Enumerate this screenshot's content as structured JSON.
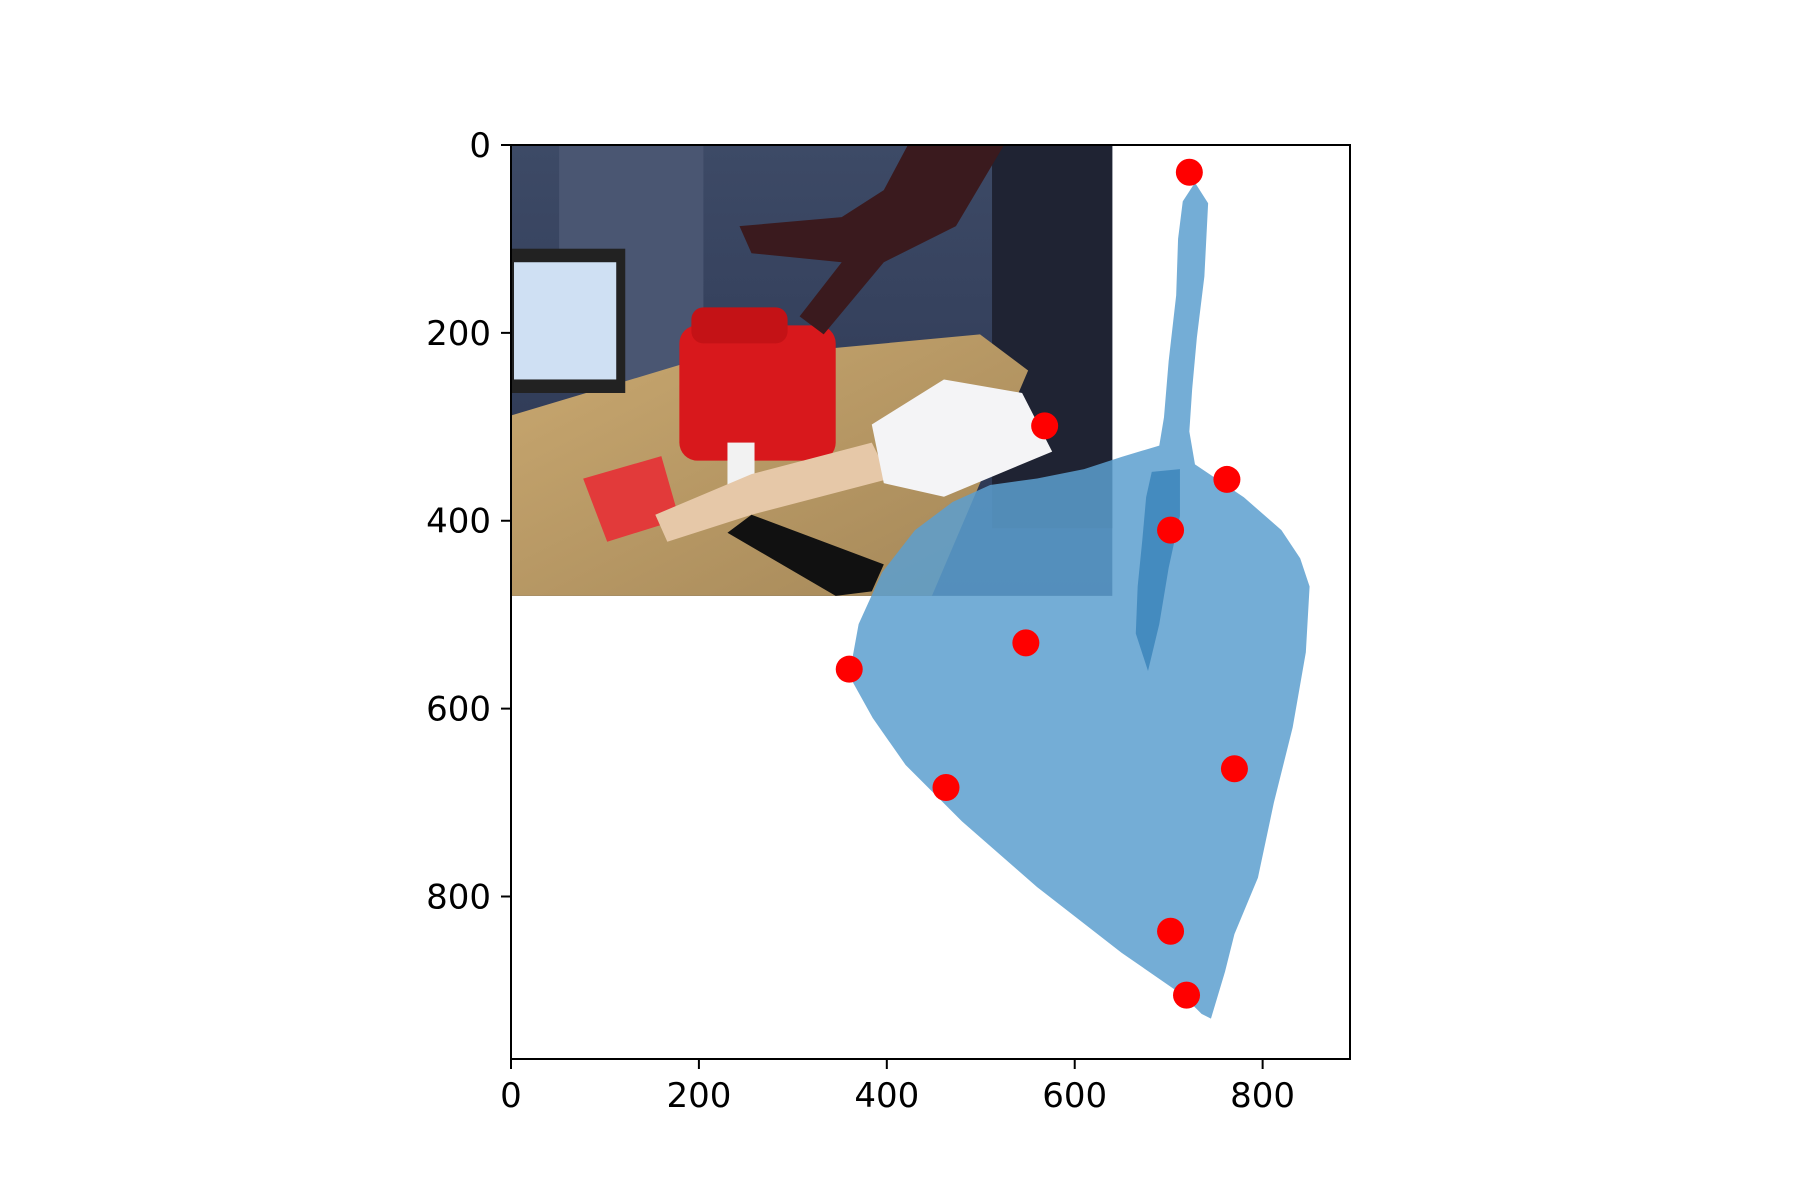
{
  "chart_data": {
    "type": "scatter",
    "title": "",
    "xlabel": "",
    "ylabel": "",
    "xlim": [
      0,
      893
    ],
    "ylim": [
      973,
      0
    ],
    "y_axis_inverted": true,
    "grid": false,
    "legend": "none",
    "x_ticks": [
      0,
      200,
      400,
      600,
      800
    ],
    "y_ticks": [
      0,
      200,
      400,
      600,
      800
    ],
    "x_tick_labels": [
      "0",
      "200",
      "400",
      "600",
      "800"
    ],
    "y_tick_labels": [
      "0",
      "200",
      "400",
      "600",
      "800"
    ],
    "background_image": {
      "description": "camera photo of a robot workspace: red fuel can, glue bottle, mannequin arm, flashlight, red basket on a wooden table, monitor in background",
      "extent_x": [
        0,
        640
      ],
      "extent_y": [
        480,
        0
      ]
    },
    "mask_polygon": {
      "color": "#5c9fcf",
      "opacity": 0.85,
      "points": [
        [
          715,
          60
        ],
        [
          728,
          40
        ],
        [
          742,
          62
        ],
        [
          738,
          140
        ],
        [
          730,
          205
        ],
        [
          725,
          260
        ],
        [
          722,
          305
        ],
        [
          728,
          340
        ],
        [
          780,
          375
        ],
        [
          820,
          410
        ],
        [
          840,
          440
        ],
        [
          850,
          470
        ],
        [
          846,
          540
        ],
        [
          832,
          620
        ],
        [
          812,
          700
        ],
        [
          795,
          780
        ],
        [
          770,
          840
        ],
        [
          760,
          880
        ],
        [
          745,
          930
        ],
        [
          735,
          925
        ],
        [
          715,
          905
        ],
        [
          650,
          860
        ],
        [
          560,
          790
        ],
        [
          480,
          720
        ],
        [
          420,
          660
        ],
        [
          385,
          610
        ],
        [
          360,
          565
        ],
        [
          370,
          510
        ],
        [
          395,
          455
        ],
        [
          430,
          410
        ],
        [
          470,
          380
        ],
        [
          510,
          362
        ],
        [
          560,
          355
        ],
        [
          610,
          345
        ],
        [
          650,
          332
        ],
        [
          690,
          320
        ],
        [
          695,
          290
        ],
        [
          700,
          230
        ],
        [
          708,
          160
        ],
        [
          710,
          100
        ]
      ]
    },
    "mask_shadow_band": {
      "color": "#3f87bd",
      "opacity": 0.9,
      "points": [
        [
          682,
          348
        ],
        [
          712,
          345
        ],
        [
          712,
          395
        ],
        [
          700,
          450
        ],
        [
          690,
          510
        ],
        [
          678,
          560
        ],
        [
          665,
          520
        ],
        [
          667,
          470
        ],
        [
          672,
          420
        ],
        [
          676,
          375
        ]
      ]
    },
    "series": [
      {
        "color": "#ff0000",
        "x": [
          722,
          568,
          762,
          702,
          548,
          360,
          770,
          463,
          702,
          719
        ],
        "y": [
          29,
          299,
          356,
          410,
          530,
          558,
          664,
          684,
          837,
          905
        ]
      }
    ]
  }
}
